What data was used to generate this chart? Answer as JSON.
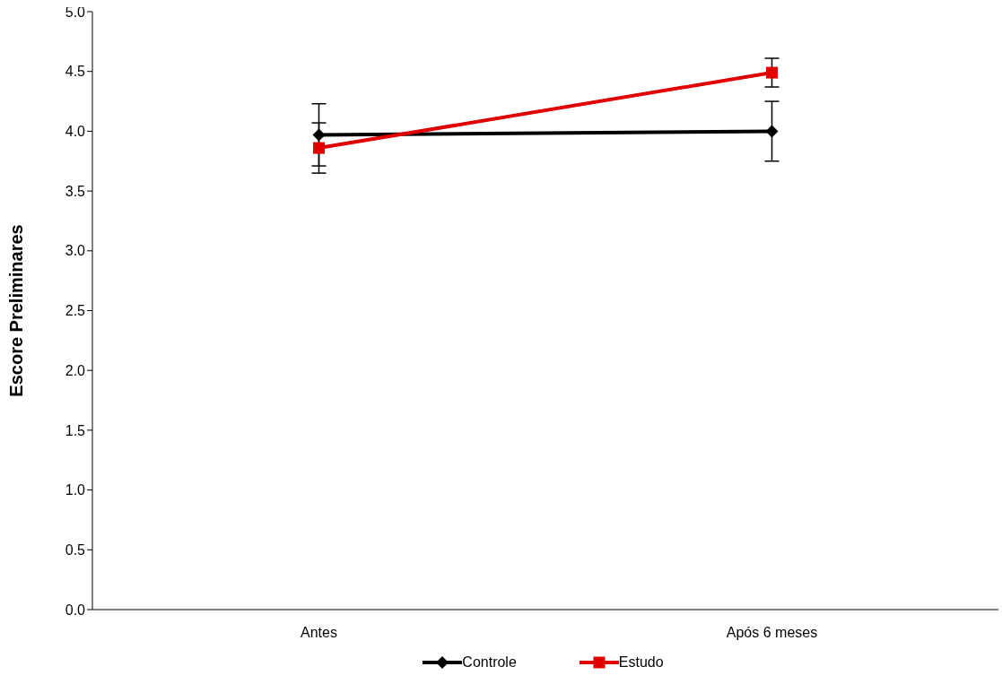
{
  "chart_data": {
    "type": "line",
    "ylabel": "Escore Preliminares",
    "categories": [
      "Antes",
      "Após 6 meses"
    ],
    "series": [
      {
        "name": "Controle",
        "color": "#000000",
        "marker": "diamond",
        "values": [
          3.97,
          4.0
        ],
        "errors": [
          0.26,
          0.25
        ]
      },
      {
        "name": "Estudo",
        "color": "#e00000",
        "marker": "square",
        "values": [
          3.86,
          4.49
        ],
        "errors": [
          0.21,
          0.12
        ]
      }
    ],
    "ylim": [
      0,
      5
    ],
    "yticks": [
      {
        "value": 0,
        "label": "0.0"
      },
      {
        "value": 0.5,
        "label": "0.5"
      },
      {
        "value": 1,
        "label": "1.0"
      },
      {
        "value": 1.5,
        "label": "1.5"
      },
      {
        "value": 2,
        "label": "2.0"
      },
      {
        "value": 2.5,
        "label": "2.5"
      },
      {
        "value": 3,
        "label": "3.0"
      },
      {
        "value": 3.5,
        "label": "3.5"
      },
      {
        "value": 4,
        "label": "4.0"
      },
      {
        "value": 4.5,
        "label": "4.5"
      },
      {
        "value": 5,
        "label": "5.0"
      }
    ],
    "grid": false,
    "legend": "bottom",
    "line_style": "solid"
  }
}
